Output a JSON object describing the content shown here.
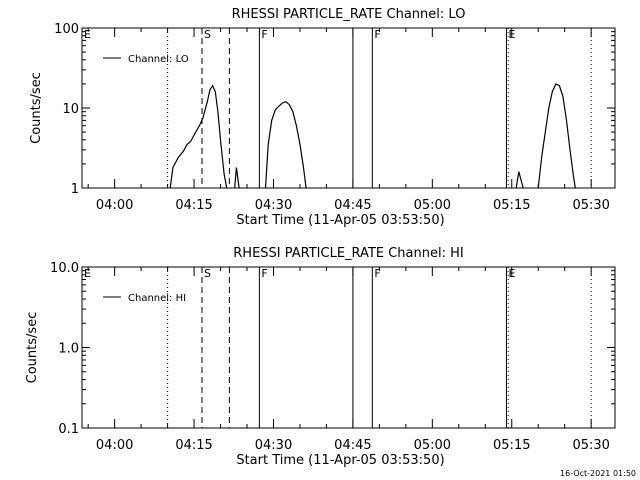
{
  "chart_data": [
    {
      "type": "line",
      "title": "RHESSI PARTICLE_RATE Channel: LO",
      "xlabel": "Start Time (11-Apr-05 03:53:50)",
      "ylabel": "Counts/sec",
      "y_scale": "log",
      "ylim": [
        1,
        100
      ],
      "xlim": [
        "03:53:50",
        "05:34:30"
      ],
      "x_ticks": [
        "04:00",
        "04:15",
        "04:30",
        "04:45",
        "05:00",
        "05:15",
        "05:30"
      ],
      "y_ticks": [
        "1",
        "10",
        "100"
      ],
      "legend": {
        "entries": [
          "Channel: LO"
        ],
        "position": "top-left"
      },
      "grid": false,
      "markers": [
        {
          "label": "E",
          "time": "03:53:50",
          "style": "none"
        },
        {
          "label": "",
          "time": "04:10:00",
          "style": "dotted"
        },
        {
          "label": "S",
          "time": "04:16:30",
          "style": "dashed"
        },
        {
          "label": "",
          "time": "04:21:40",
          "style": "dashed"
        },
        {
          "label": "F",
          "time": "04:27:20",
          "style": "solid"
        },
        {
          "label": "",
          "time": "04:45:00",
          "style": "solid"
        },
        {
          "label": "F",
          "time": "04:48:40",
          "style": "solid"
        },
        {
          "label": "E",
          "time": "05:14:00",
          "style": "solid"
        },
        {
          "label": "",
          "time": "05:14:20",
          "style": "dotted"
        },
        {
          "label": "",
          "time": "05:30:00",
          "style": "dotted"
        }
      ],
      "series": [
        {
          "name": "Channel: LO",
          "segments": [
            [
              [
                "04:10:30",
                1.0
              ],
              [
                "04:11:00",
                1.8
              ],
              [
                "04:12:00",
                2.4
              ],
              [
                "04:13:00",
                2.9
              ],
              [
                "04:13:40",
                3.5
              ],
              [
                "04:14:20",
                3.8
              ],
              [
                "04:15:00",
                4.6
              ],
              [
                "04:16:00",
                6.0
              ],
              [
                "04:16:40",
                7.5
              ],
              [
                "04:17:30",
                12.0
              ],
              [
                "04:18:00",
                17.0
              ],
              [
                "04:18:30",
                19.0
              ],
              [
                "04:19:00",
                16.0
              ],
              [
                "04:19:30",
                9.0
              ],
              [
                "04:20:00",
                4.0
              ],
              [
                "04:20:40",
                1.5
              ],
              [
                "04:21:10",
                1.0
              ]
            ],
            [
              [
                "04:22:40",
                1.0
              ],
              [
                "04:23:00",
                1.8
              ],
              [
                "04:23:30",
                1.0
              ]
            ],
            [
              [
                "04:28:30",
                1.0
              ],
              [
                "04:29:00",
                3.5
              ],
              [
                "04:29:40",
                7.0
              ],
              [
                "04:30:20",
                9.5
              ],
              [
                "04:31:00",
                10.5
              ],
              [
                "04:31:40",
                11.5
              ],
              [
                "04:32:20",
                12.0
              ],
              [
                "04:33:00",
                11.0
              ],
              [
                "04:33:40",
                9.0
              ],
              [
                "04:34:20",
                6.0
              ],
              [
                "04:35:00",
                3.5
              ],
              [
                "04:35:40",
                1.8
              ],
              [
                "04:36:10",
                1.0
              ]
            ],
            [
              [
                "05:15:50",
                1.0
              ],
              [
                "05:16:20",
                1.6
              ],
              [
                "05:17:10",
                1.0
              ]
            ],
            [
              [
                "05:20:00",
                1.0
              ],
              [
                "05:20:40",
                2.5
              ],
              [
                "05:21:20",
                5.0
              ],
              [
                "05:22:00",
                10.0
              ],
              [
                "05:22:40",
                16.0
              ],
              [
                "05:23:20",
                20.0
              ],
              [
                "05:24:00",
                19.0
              ],
              [
                "05:24:40",
                14.0
              ],
              [
                "05:25:20",
                7.0
              ],
              [
                "05:26:00",
                3.0
              ],
              [
                "05:26:40",
                1.4
              ],
              [
                "05:27:00",
                1.0
              ]
            ]
          ]
        }
      ]
    },
    {
      "type": "line",
      "title": "RHESSI PARTICLE_RATE Channel: HI",
      "xlabel": "Start Time (11-Apr-05 03:53:50)",
      "ylabel": "Counts/sec",
      "y_scale": "log",
      "ylim": [
        0.1,
        10
      ],
      "xlim": [
        "03:53:50",
        "05:34:30"
      ],
      "x_ticks": [
        "04:00",
        "04:15",
        "04:30",
        "04:45",
        "05:00",
        "05:15",
        "05:30"
      ],
      "y_ticks": [
        "0.1",
        "1.0",
        "10.0"
      ],
      "legend": {
        "entries": [
          "Channel: HI"
        ],
        "position": "top-left"
      },
      "grid": false,
      "markers": [
        {
          "label": "E",
          "time": "03:53:50",
          "style": "none"
        },
        {
          "label": "",
          "time": "04:10:00",
          "style": "dotted"
        },
        {
          "label": "S",
          "time": "04:16:30",
          "style": "dashed"
        },
        {
          "label": "",
          "time": "04:21:40",
          "style": "dashed"
        },
        {
          "label": "F",
          "time": "04:27:20",
          "style": "solid"
        },
        {
          "label": "",
          "time": "04:45:00",
          "style": "solid"
        },
        {
          "label": "F",
          "time": "04:48:40",
          "style": "solid"
        },
        {
          "label": "E",
          "time": "05:14:00",
          "style": "solid"
        },
        {
          "label": "",
          "time": "05:14:20",
          "style": "dotted"
        },
        {
          "label": "",
          "time": "05:30:00",
          "style": "dotted"
        }
      ],
      "series": [
        {
          "name": "Channel: HI",
          "segments": []
        }
      ]
    }
  ],
  "footer": {
    "timestamp": "16-Oct-2021 01:50"
  }
}
